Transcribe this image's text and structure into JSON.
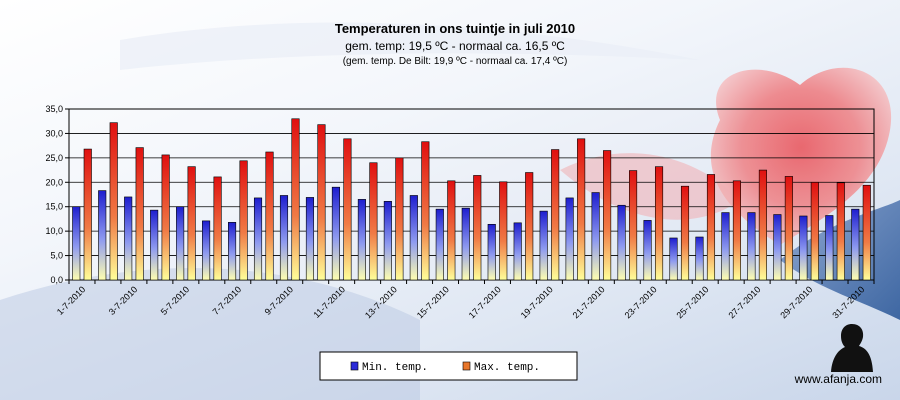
{
  "chart_data": {
    "type": "bar",
    "title": "Temperaturen  in ons tuintje in juli 2010",
    "subtitle": "gem.  temp:  19,5 ºC - normaal  ca.  16,5 ºC",
    "subtitle2": "(gem. temp. De Bilt: 19,9 ºC - normaal ca. 17,4 ºC)",
    "ylim": [
      0,
      35
    ],
    "yticks": [
      "0,0",
      "5,0",
      "10,0",
      "15,0",
      "20,0",
      "25,0",
      "30,0",
      "35,0"
    ],
    "grid": true,
    "legend_position": "bottom",
    "categories": [
      "1-7-2010",
      "2-7-2010",
      "3-7-2010",
      "4-7-2010",
      "5-7-2010",
      "6-7-2010",
      "7-7-2010",
      "8-7-2010",
      "9-7-2010",
      "10-7-2010",
      "11-7-2010",
      "12-7-2010",
      "13-7-2010",
      "14-7-2010",
      "15-7-2010",
      "16-7-2010",
      "17-7-2010",
      "18-7-2010",
      "19-7-2010",
      "20-7-2010",
      "21-7-2010",
      "22-7-2010",
      "23-7-2010",
      "24-7-2010",
      "25-7-2010",
      "26-7-2010",
      "27-7-2010",
      "28-7-2010",
      "29-7-2010",
      "30-7-2010",
      "31-7-2010"
    ],
    "xtick_labels": [
      "1-7-2010",
      "",
      "3-7-2010",
      "",
      "5-7-2010",
      "",
      "7-7-2010",
      "",
      "9-7-2010",
      "",
      "11-7-2010",
      "",
      "13-7-2010",
      "",
      "15-7-2010",
      "",
      "17-7-2010",
      "",
      "19-7-2010",
      "",
      "21-7-2010",
      "",
      "23-7-2010",
      "",
      "25-7-2010",
      "",
      "27-7-2010",
      "",
      "29-7-2010",
      "",
      "31-7-2010"
    ],
    "series": [
      {
        "name": "Min. temp.",
        "color": "#2a2ad8",
        "values": [
          15.0,
          18.3,
          17.0,
          14.3,
          15.0,
          12.1,
          11.8,
          16.8,
          17.3,
          16.9,
          19.0,
          16.5,
          16.1,
          17.3,
          14.5,
          14.7,
          11.4,
          11.7,
          14.1,
          16.8,
          17.9,
          15.3,
          12.2,
          8.6,
          8.8,
          13.8,
          13.8,
          13.4,
          13.1,
          13.2,
          14.5
        ]
      },
      {
        "name": "Max. temp.",
        "color": "#e01a1a",
        "values": [
          26.8,
          32.2,
          27.1,
          25.6,
          23.2,
          21.1,
          24.4,
          26.2,
          33.0,
          31.8,
          28.9,
          24.0,
          25.0,
          28.3,
          20.3,
          21.4,
          20.1,
          22.0,
          26.7,
          28.9,
          26.5,
          22.4,
          23.2,
          19.2,
          21.6,
          20.3,
          22.5,
          21.2,
          20.0,
          19.9,
          19.4
        ]
      }
    ]
  },
  "legend": {
    "min_label": "Min.  temp.",
    "max_label": "Max.  temp."
  },
  "watermark": "www.afanja.com"
}
